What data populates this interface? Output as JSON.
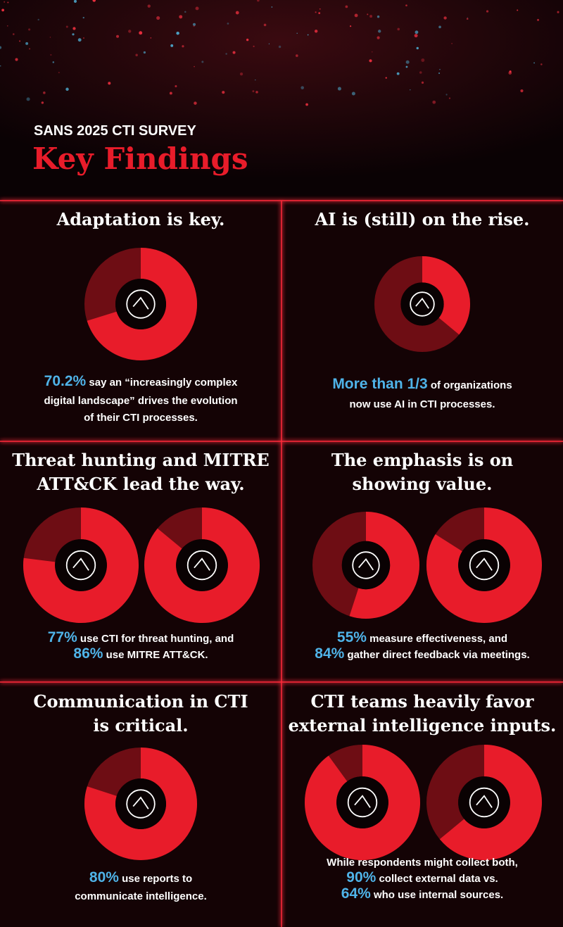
{
  "header": {
    "subtitle": "SANS 2025 CTI SURVEY",
    "title": "Key Findings"
  },
  "panels": [
    {
      "title": [
        "Adaptation is key."
      ],
      "charts": [
        {
          "value": 70.2
        }
      ],
      "lines": [
        [
          {
            "hl": "70.2%"
          },
          {
            "t": " say an “increasingly complex"
          }
        ],
        [
          {
            "t": "digital landscape” drives the evolution"
          }
        ],
        [
          {
            "t": "of their CTI processes."
          }
        ]
      ]
    },
    {
      "title": [
        "AI is (still) on the rise."
      ],
      "charts": [
        {
          "value": 36
        }
      ],
      "lines": [
        [
          {
            "hl": "More than 1/3"
          },
          {
            "t": " of organizations"
          }
        ],
        [
          {
            "t": "now use AI in CTI processes."
          }
        ]
      ]
    },
    {
      "title": [
        "Threat hunting and MITRE",
        "ATT&CK lead the way."
      ],
      "charts": [
        {
          "value": 77
        },
        {
          "value": 86
        }
      ],
      "lines": [
        [
          {
            "hl": "77%"
          },
          {
            "t": " use CTI for threat hunting, and"
          }
        ],
        [
          {
            "hl": "86%"
          },
          {
            "t": " use MITRE ATT&CK."
          }
        ]
      ]
    },
    {
      "title": [
        "The emphasis is on",
        "showing value."
      ],
      "charts": [
        {
          "value": 55
        },
        {
          "value": 84
        }
      ],
      "lines": [
        [
          {
            "hl": "55%"
          },
          {
            "t": " measure effectiveness, and"
          }
        ],
        [
          {
            "hl": "84%"
          },
          {
            "t": " gather direct feedback via meetings."
          }
        ]
      ]
    },
    {
      "title": [
        "Communication in CTI",
        "is critical."
      ],
      "charts": [
        {
          "value": 80
        }
      ],
      "lines": [
        [
          {
            "hl": "80%"
          },
          {
            "t": " use reports to"
          }
        ],
        [
          {
            "t": "communicate intelligence."
          }
        ]
      ]
    },
    {
      "title": [
        "CTI teams heavily favor",
        "external intelligence inputs."
      ],
      "charts": [
        {
          "value": 90
        },
        {
          "value": 64
        }
      ],
      "lines": [
        [
          {
            "t": "While respondents might collect both,"
          }
        ],
        [
          {
            "hl": "90%"
          },
          {
            "t": " collect external data vs."
          }
        ],
        [
          {
            "hl": "64%"
          },
          {
            "t": " who use internal sources."
          }
        ]
      ]
    }
  ]
}
